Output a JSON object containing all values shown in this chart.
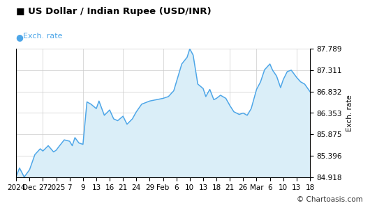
{
  "title": "US Dollar / Indian Rupee (USD/INR)",
  "legend_label": "Exch. rate",
  "ylabel_right": "Exch. rate",
  "watermark": "© Chartoasis.com",
  "line_color": "#4da6e8",
  "fill_color": "#daeef8",
  "background_color": "#ffffff",
  "grid_color": "#cccccc",
  "ylim_min": 84.918,
  "ylim_max": 87.789,
  "yticks": [
    84.918,
    85.396,
    85.875,
    86.353,
    86.832,
    87.311,
    87.789
  ],
  "x_labels": [
    "2024",
    "Dec",
    "27",
    "2025",
    "7",
    "9",
    "13",
    "16",
    "21",
    "24",
    "29",
    "Feb",
    "6",
    "10",
    "13",
    "18",
    "21",
    "26",
    "Mar",
    "6",
    "10",
    "13",
    "18"
  ],
  "title_fontsize": 9.5,
  "tick_fontsize": 7.5,
  "legend_fontsize": 8,
  "watermark_fontsize": 7.5,
  "raw_data": [
    [
      0.0,
      84.93
    ],
    [
      0.25,
      85.12
    ],
    [
      0.6,
      84.918
    ],
    [
      1.0,
      85.08
    ],
    [
      1.4,
      85.42
    ],
    [
      1.8,
      85.55
    ],
    [
      2.0,
      85.5
    ],
    [
      2.4,
      85.62
    ],
    [
      2.8,
      85.48
    ],
    [
      3.0,
      85.52
    ],
    [
      3.2,
      85.6
    ],
    [
      3.6,
      85.75
    ],
    [
      4.0,
      85.72
    ],
    [
      4.2,
      85.62
    ],
    [
      4.4,
      85.8
    ],
    [
      4.7,
      85.68
    ],
    [
      5.0,
      85.65
    ],
    [
      5.3,
      86.6
    ],
    [
      5.6,
      86.55
    ],
    [
      6.0,
      86.45
    ],
    [
      6.2,
      86.62
    ],
    [
      6.6,
      86.3
    ],
    [
      7.0,
      86.42
    ],
    [
      7.3,
      86.22
    ],
    [
      7.6,
      86.18
    ],
    [
      8.0,
      86.28
    ],
    [
      8.3,
      86.1
    ],
    [
      8.7,
      86.22
    ],
    [
      9.0,
      86.38
    ],
    [
      9.4,
      86.55
    ],
    [
      10.0,
      86.62
    ],
    [
      10.5,
      86.65
    ],
    [
      11.0,
      86.68
    ],
    [
      11.4,
      86.72
    ],
    [
      11.8,
      86.85
    ],
    [
      12.0,
      87.05
    ],
    [
      12.4,
      87.45
    ],
    [
      12.8,
      87.6
    ],
    [
      13.0,
      87.789
    ],
    [
      13.25,
      87.65
    ],
    [
      13.6,
      87.0
    ],
    [
      14.0,
      86.9
    ],
    [
      14.2,
      86.72
    ],
    [
      14.5,
      86.88
    ],
    [
      14.8,
      86.65
    ],
    [
      15.0,
      86.68
    ],
    [
      15.3,
      86.75
    ],
    [
      15.7,
      86.68
    ],
    [
      16.0,
      86.52
    ],
    [
      16.3,
      86.38
    ],
    [
      16.7,
      86.32
    ],
    [
      17.0,
      86.35
    ],
    [
      17.3,
      86.3
    ],
    [
      17.6,
      86.45
    ],
    [
      18.0,
      86.88
    ],
    [
      18.3,
      87.05
    ],
    [
      18.6,
      87.32
    ],
    [
      19.0,
      87.45
    ],
    [
      19.2,
      87.311
    ],
    [
      19.5,
      87.18
    ],
    [
      19.8,
      86.92
    ],
    [
      20.0,
      87.1
    ],
    [
      20.3,
      87.28
    ],
    [
      20.6,
      87.311
    ],
    [
      21.0,
      87.15
    ],
    [
      21.3,
      87.05
    ],
    [
      21.6,
      87.0
    ],
    [
      22.0,
      86.832
    ]
  ]
}
